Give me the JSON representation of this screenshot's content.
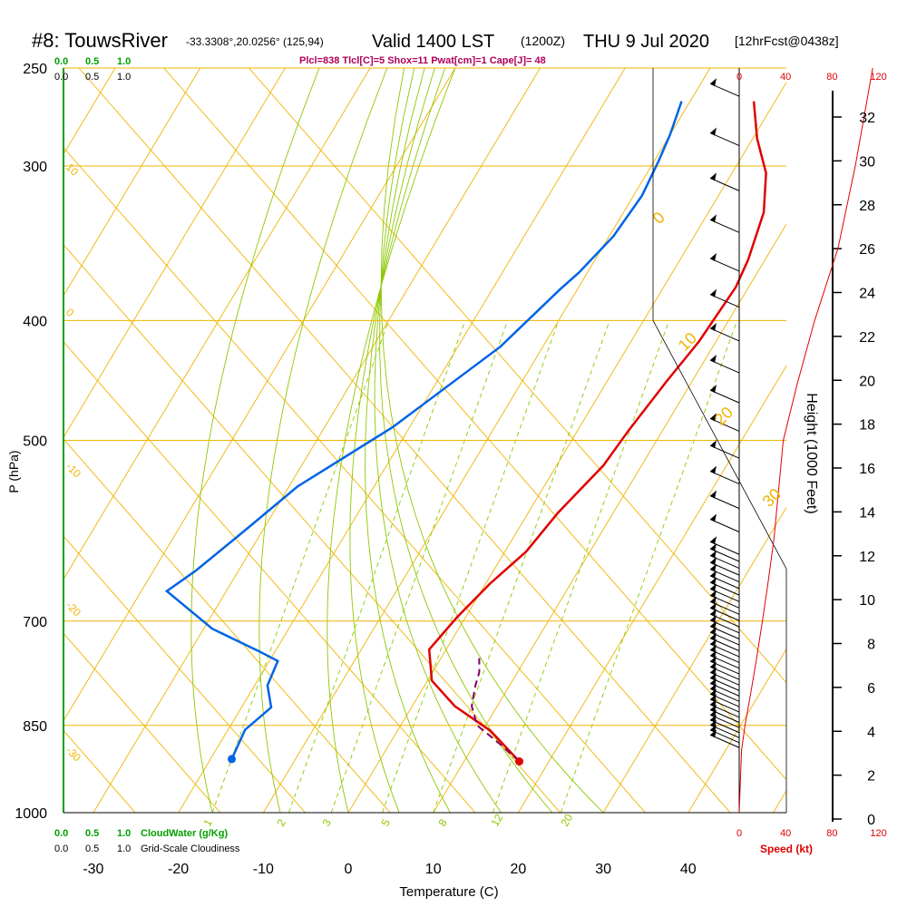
{
  "header": {
    "station": "#8: TouwsRiver",
    "coords": "-33.3308°,20.0256° (125,94)",
    "valid": "Valid 1400 LST",
    "utc": "(1200Z)",
    "date": "THU 9 Jul 2020",
    "forecast": "[12hrFcst@0438z]",
    "indices": "Plcl=838 Tlcl[C]=5 Shox=11 Pwat[cm]=1 Cape[J]= 48"
  },
  "scales": {
    "cloud_ticks": [
      "0.0",
      "0.5",
      "1.0"
    ],
    "cloudwater_label": "CloudWater (g/Kg)",
    "cloudiness_label": "Grid-Scale Cloudiness"
  },
  "colors": {
    "isotherm": "#f0b400",
    "dry_adiabat": "#f0b400",
    "moist_adiabat": "#8cc800",
    "mixing_ratio": "#8cc800",
    "temperature": "#e00000",
    "dewpoint": "#0064e6",
    "parcel": "#800060",
    "height_curve": "#e00000",
    "cloud_axis": "#00a000",
    "indices_text": "#b0005a"
  },
  "chart_data": {
    "type": "line",
    "title": "",
    "xlabel": "Temperature (C)",
    "ylabel": "P (hPa)",
    "x_ticks": [
      -30,
      -20,
      -10,
      0,
      10,
      20,
      30,
      40
    ],
    "y_ticks": [
      250,
      300,
      400,
      500,
      700,
      850,
      1000
    ],
    "xlim": [
      -34,
      50
    ],
    "ylim": [
      1050,
      250
    ],
    "isotherm_labels": [
      30,
      20,
      10,
      0,
      -10,
      -20,
      -30
    ],
    "adiabat_labels": [
      10,
      20,
      30
    ],
    "mixing_ratio_labels": [
      1,
      2,
      3,
      5,
      8,
      12,
      20
    ],
    "series": [
      {
        "name": "",
        "key": "temperature",
        "points": [
          [
            -2.5,
            266
          ],
          [
            0.5,
            285
          ],
          [
            4,
            304
          ],
          [
            6.5,
            327
          ],
          [
            8,
            357
          ],
          [
            8.5,
            376
          ],
          [
            8,
            416
          ],
          [
            7,
            448
          ],
          [
            6,
            491
          ],
          [
            5.5,
            524
          ],
          [
            3.5,
            572
          ],
          [
            2.5,
            615
          ],
          [
            0.5,
            653
          ],
          [
            -1,
            695
          ],
          [
            -2,
            738
          ],
          [
            0.5,
            782
          ],
          [
            5,
            820
          ],
          [
            11,
            859
          ],
          [
            16.5,
            909
          ]
        ]
      },
      {
        "name": "",
        "key": "dewpoint",
        "points": [
          [
            -11,
            266
          ],
          [
            -10,
            283
          ],
          [
            -9.5,
            297
          ],
          [
            -9,
            317
          ],
          [
            -9.5,
            342
          ],
          [
            -11,
            366
          ],
          [
            -12,
            377
          ],
          [
            -15,
            420
          ],
          [
            -22,
            488
          ],
          [
            -29,
            545
          ],
          [
            -32,
            590
          ],
          [
            -35,
            637
          ],
          [
            -37,
            662
          ],
          [
            -29,
            710
          ],
          [
            -22,
            740
          ],
          [
            -19,
            754
          ],
          [
            -18.5,
            789
          ],
          [
            -16.5,
            822
          ],
          [
            -18,
            857
          ],
          [
            -17.5,
            905
          ]
        ]
      },
      {
        "name": "",
        "key": "parcel",
        "points": [
          [
            16.5,
            909
          ],
          [
            13,
            880
          ],
          [
            9,
            850
          ],
          [
            7,
            820
          ],
          [
            6,
            790
          ],
          [
            5.5,
            770
          ],
          [
            4.5,
            750
          ]
        ]
      }
    ],
    "height_axis": {
      "label": "Height (1000 Feet)",
      "ticks": [
        0,
        2,
        4,
        6,
        8,
        10,
        12,
        14,
        16,
        18,
        20,
        22,
        24,
        26,
        28,
        30,
        32
      ]
    },
    "wind": {
      "label": "Speed (kt)",
      "ticks": [
        0,
        40,
        80,
        120
      ],
      "profile_points": [
        [
          0,
          1000
        ],
        [
          2,
          890
        ],
        [
          5,
          850
        ],
        [
          10,
          800
        ],
        [
          15,
          750
        ],
        [
          20,
          700
        ],
        [
          25,
          650
        ],
        [
          30,
          600
        ],
        [
          38,
          500
        ],
        [
          50,
          450
        ],
        [
          65,
          400
        ],
        [
          85,
          350
        ],
        [
          100,
          300
        ],
        [
          115,
          250
        ]
      ]
    }
  }
}
